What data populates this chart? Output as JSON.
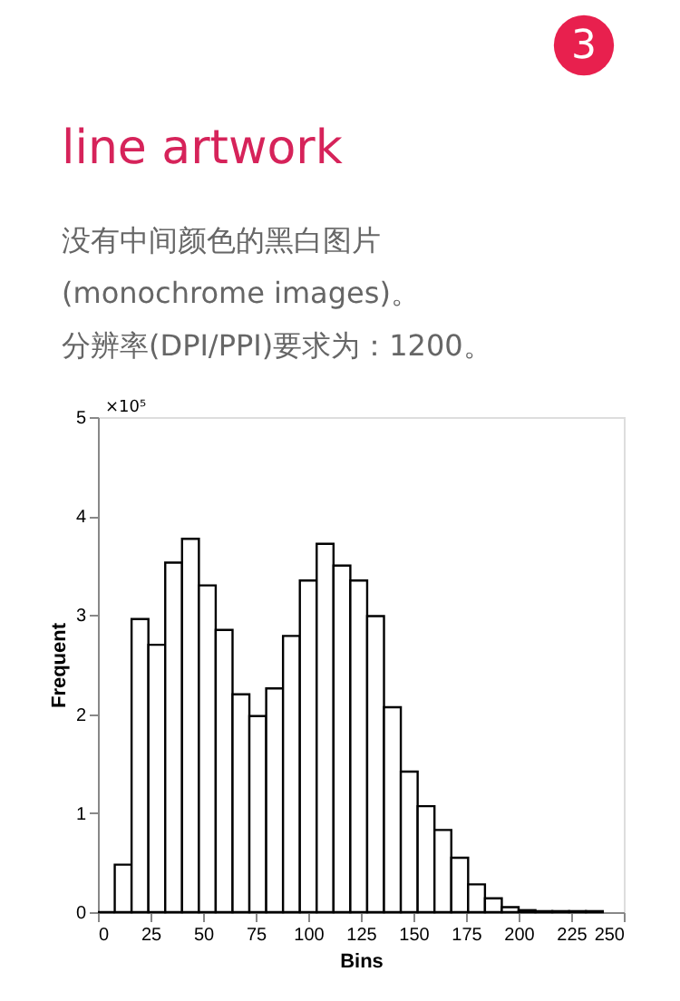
{
  "chart_data": {
    "type": "histogram",
    "title": "line artwork",
    "subtitle": [
      "没有中间颜色的黑白图片",
      "(monochrome images)。",
      "分辨率(DPI/PPI)要求为：1200。"
    ],
    "xlabel": "Bins",
    "ylabel": "Frequent",
    "bins": [
      0,
      8,
      16,
      24,
      32,
      40,
      48,
      56,
      64,
      72,
      80,
      88,
      96,
      104,
      112,
      120,
      128,
      136,
      144,
      152,
      160,
      168,
      176,
      184,
      192,
      200,
      208,
      216,
      224,
      232,
      240
    ],
    "values": [
      0,
      0.48,
      2.96,
      2.7,
      3.53,
      3.77,
      3.3,
      2.85,
      2.2,
      1.98,
      2.26,
      2.79,
      3.35,
      3.72,
      3.5,
      3.35,
      2.99,
      2.07,
      1.42,
      1.07,
      0.83,
      0.55,
      0.28,
      0.14,
      0.05,
      0.02,
      0.01,
      0.01,
      0.01,
      0.01
    ],
    "color": "#ffffff",
    "xlim": [
      0,
      250
    ],
    "xticks": [
      0,
      25,
      50,
      75,
      100,
      125,
      150,
      175,
      200,
      225,
      250
    ],
    "ylim": [
      0,
      5
    ],
    "yticks": [
      0,
      1,
      2,
      3,
      4,
      5
    ],
    "grid": false,
    "annotations": [
      "×10⁵",
      "3"
    ]
  }
}
